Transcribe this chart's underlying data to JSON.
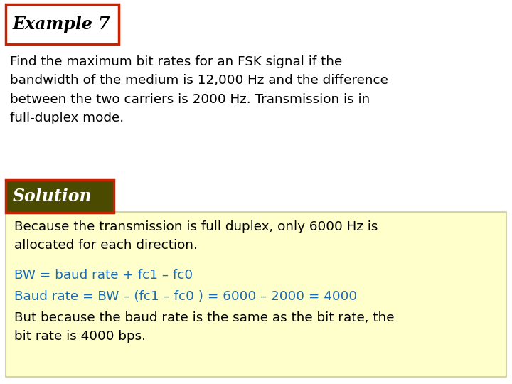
{
  "background_color": "#ffffff",
  "example_title": "Example 7",
  "example_title_color": "#000000",
  "example_box_edge_color": "#cc2200",
  "example_box_face_color": "#ffffff",
  "problem_text": "Find the maximum bit rates for an FSK signal if the\nbandwidth of the medium is 12,000 Hz and the difference\nbetween the two carriers is 2000 Hz. Transmission is in\nfull-duplex mode.",
  "problem_text_color": "#000000",
  "solution_label": "Solution",
  "solution_label_color": "#ffffff",
  "solution_box_face_color": "#4a4a00",
  "solution_box_edge_color": "#cc2200",
  "solution_box_bg": "#ffffcc",
  "solution_line1": "Because the transmission is full duplex, only 6000 Hz is\nallocated for each direction.",
  "solution_line1_color": "#000000",
  "solution_line2": "BW = baud rate + fc1 – fc0",
  "solution_line2_color": "#1a6bb5",
  "solution_line3": "Baud rate = BW – (fc1 – fc0 ) = 6000 – 2000 = 4000",
  "solution_line3_color": "#1a6bb5",
  "solution_line4": "But because the baud rate is the same as the bit rate, the\nbit rate is 4000 bps.",
  "solution_line4_color": "#000000"
}
